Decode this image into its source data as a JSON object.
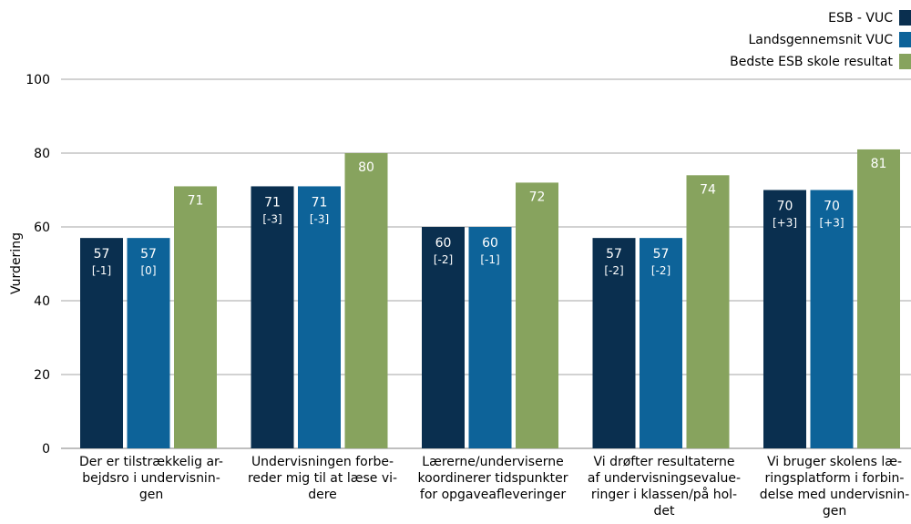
{
  "chart_data": {
    "type": "bar",
    "title": "",
    "xlabel": "",
    "ylabel": "Vurdering",
    "ylim": [
      0,
      100
    ],
    "yticks": [
      0,
      20,
      40,
      60,
      80,
      100
    ],
    "grid": true,
    "legend_position": "top-right",
    "categories": [
      [
        "Der er tilstrækkelig ar-",
        "bejdsro i undervisnin-",
        "gen"
      ],
      [
        "Undervisningen forbe-",
        "reder mig til at læse vi-",
        "dere"
      ],
      [
        "Lærerne/underviserne",
        "koordinerer tidspunkter",
        "for opgaveafleveringer"
      ],
      [
        "Vi drøfter resultaterne",
        "af undervisningsevalue-",
        "ringer i klassen/på hol-",
        "det"
      ],
      [
        "Vi bruger skolens læ-",
        "ringsplatform  i forbin-",
        "delse med undervisnin-",
        "gen"
      ]
    ],
    "series": [
      {
        "name": "ESB - VUC",
        "color": "#0a2f4f",
        "values": [
          57,
          71,
          60,
          57,
          70
        ],
        "labels": [
          "57",
          "71",
          "60",
          "57",
          "70"
        ],
        "deltas": [
          "[-1]",
          "[-3]",
          "[-2]",
          "[-2]",
          "[+3]"
        ]
      },
      {
        "name": "Landsgennemsnit VUC",
        "color": "#0d6399",
        "values": [
          57,
          71,
          60,
          57,
          70
        ],
        "labels": [
          "57",
          "71",
          "60",
          "57",
          "70"
        ],
        "deltas": [
          "[0]",
          "[-3]",
          "[-1]",
          "[-2]",
          "[+3]"
        ]
      },
      {
        "name": "Bedste ESB skole resultat",
        "color": "#87a35e",
        "values": [
          71,
          80,
          72,
          74,
          81
        ],
        "labels": [
          "71",
          "80",
          "72",
          "74",
          "81"
        ],
        "deltas": [
          "",
          "",
          "",
          "",
          ""
        ]
      }
    ]
  }
}
